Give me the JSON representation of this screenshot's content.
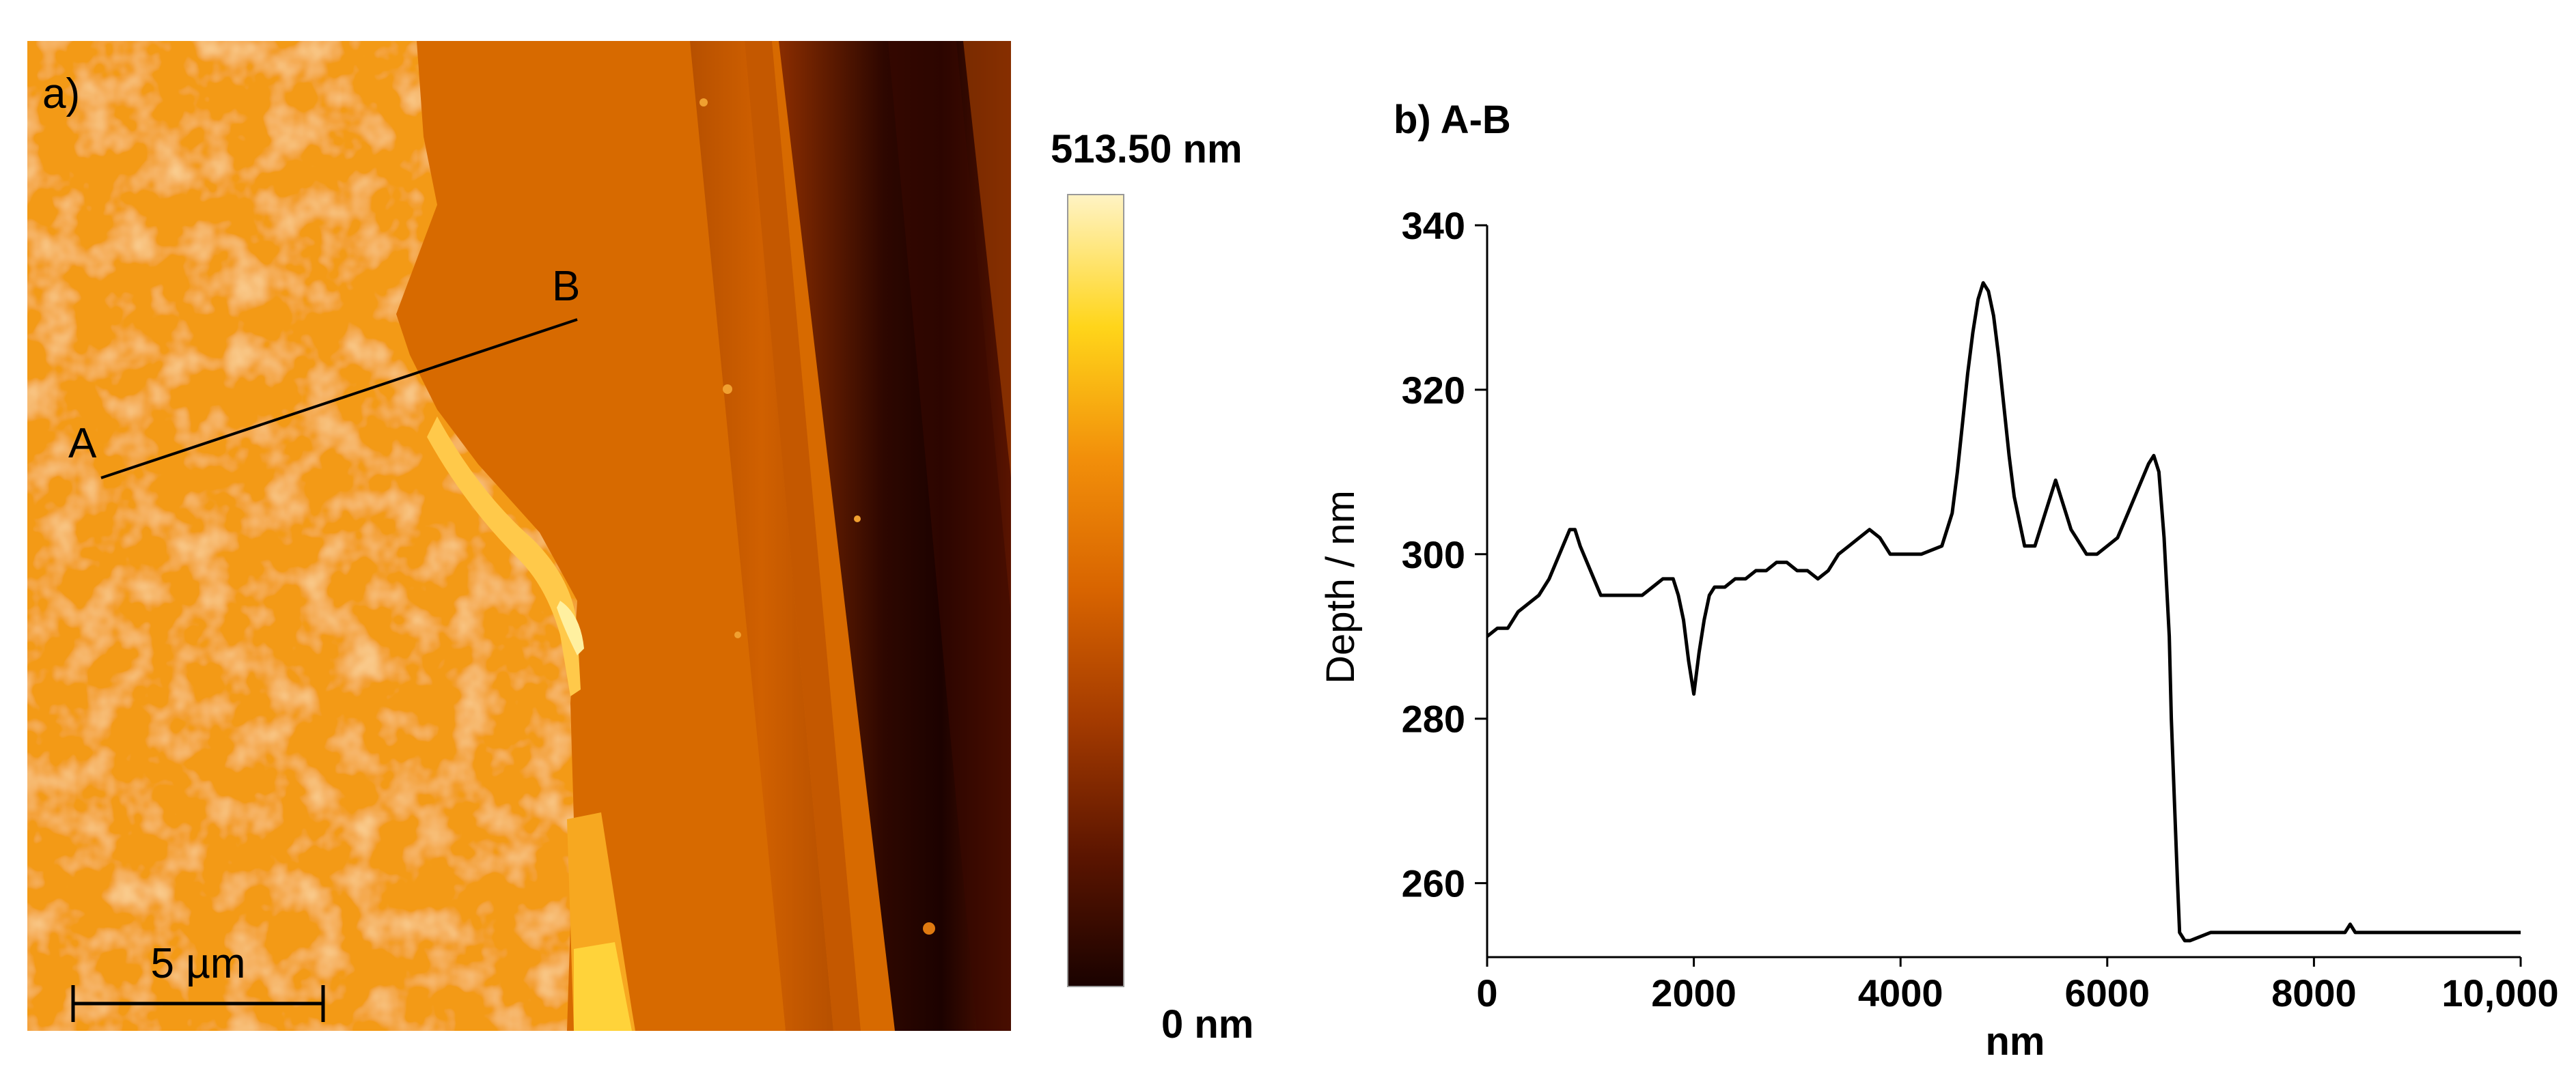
{
  "panel_a": {
    "label": "a)",
    "point_a_label": "A",
    "point_b_label": "B",
    "scale_bar_label": "5 µm",
    "colorbar_max_label": "513.50 nm",
    "colorbar_min_label": "0 nm",
    "colormap": [
      "#1a0200",
      "#5c1500",
      "#a33a00",
      "#d86400",
      "#f28f0a",
      "#ffd51a",
      "#fff3c4"
    ]
  },
  "chart_data": {
    "type": "line",
    "title": "b) A-B",
    "xlabel": "nm",
    "ylabel": "Depth / nm",
    "xlim": [
      0,
      10000
    ],
    "ylim": [
      251,
      340
    ],
    "xticks": [
      0,
      2000,
      4000,
      6000,
      8000,
      10000
    ],
    "xtick_labels": [
      "0",
      "2000",
      "4000",
      "6000",
      "8000",
      "10,000"
    ],
    "yticks": [
      260,
      280,
      300,
      320,
      340
    ],
    "ytick_labels": [
      "260",
      "280",
      "300",
      "320",
      "340"
    ],
    "grid": false,
    "series": [
      {
        "x": [
          0,
          100,
          200,
          300,
          400,
          500,
          600,
          700,
          800,
          850,
          900,
          1000,
          1100,
          1200,
          1300,
          1400,
          1500,
          1600,
          1700,
          1800,
          1850,
          1900,
          1950,
          2000,
          2050,
          2100,
          2150,
          2200,
          2300,
          2400,
          2500,
          2600,
          2700,
          2800,
          2900,
          3000,
          3100,
          3200,
          3300,
          3400,
          3500,
          3600,
          3700,
          3800,
          3900,
          4000,
          4200,
          4400,
          4500,
          4550,
          4600,
          4650,
          4700,
          4750,
          4800,
          4850,
          4900,
          4950,
          5000,
          5050,
          5100,
          5200,
          5300,
          5400,
          5500,
          5550,
          5600,
          5650,
          5700,
          5800,
          5900,
          6000,
          6100,
          6200,
          6300,
          6400,
          6450,
          6500,
          6550,
          6600,
          6620,
          6650,
          6680,
          6700,
          6750,
          6800,
          7000,
          7500,
          8000,
          8300,
          8350,
          8400,
          9000,
          9100,
          9200,
          9500,
          10000
        ],
        "y": [
          290,
          291,
          291,
          293,
          294,
          295,
          297,
          300,
          303,
          303,
          301,
          298,
          295,
          295,
          295,
          295,
          295,
          296,
          297,
          297,
          295,
          292,
          287,
          283,
          288,
          292,
          295,
          296,
          296,
          297,
          297,
          298,
          298,
          299,
          299,
          298,
          298,
          297,
          298,
          300,
          301,
          302,
          303,
          302,
          300,
          300,
          300,
          301,
          305,
          310,
          316,
          322,
          327,
          331,
          333,
          332,
          329,
          324,
          318,
          312,
          307,
          301,
          301,
          305,
          309,
          307,
          305,
          303,
          302,
          300,
          300,
          301,
          302,
          305,
          308,
          311,
          312,
          310,
          302,
          290,
          280,
          270,
          260,
          254,
          253,
          253,
          254,
          254,
          254,
          254,
          255,
          254,
          254,
          254,
          254,
          254,
          254
        ]
      }
    ]
  }
}
